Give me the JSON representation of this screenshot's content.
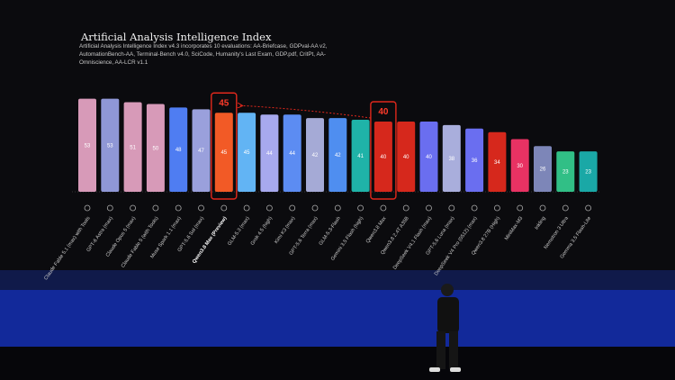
{
  "chart_data": {
    "type": "bar",
    "title": "Artificial Analysis Intelligence Index",
    "subtitle": "Artificial Analysis Intelligence Index v4.3 incorporates 10 evaluations: AA-Briefcase, GDPval-AA v2, AutomationBench-AA, Terminal-Bench v4.0, SciCode, Humanity's Last Exam, GDP.pdf, CritPt, AA-Omniscience, AA-LCR v1.1",
    "categories": [
      "Claude Fable 5.1 (max) with Tools",
      "GPT-6 Astra (max)",
      "Claude Opus 5 (max)",
      "Claude Fable 5 (with Tools)",
      "Muse Spark 1.1 (max)",
      "GPT-5.6 Sol (max)",
      "Qwen3.8 Max (Preview)",
      "GLM-5.3 (max)",
      "Grok 4.5 (high)",
      "Kimi K3 (max)",
      "GPT-5.6 Terra (max)",
      "GLM-5.3-Flash",
      "Gemini 3.5 Flash (high)",
      "Qwen3.8 Max",
      "Qwen3.8 2.4T A35B",
      "DeepSeek V4.1 Flash (max)",
      "GPT-5.6 Luna (max)",
      "DeepSeek V4 Pro (0512) (max)",
      "Qwen3.8 27B (High)",
      "MiniMax-M3",
      "Inkling",
      "Nemotron 3 Ultra",
      "Gemma 3.5 Flash-Lite"
    ],
    "values": [
      53,
      53,
      51,
      50,
      48,
      47,
      45,
      45,
      44,
      44,
      42,
      42,
      41,
      40,
      40,
      40,
      38,
      36,
      34,
      30,
      26,
      23,
      23
    ],
    "colors": [
      "#d79ab8",
      "#8f97d6",
      "#d79ab8",
      "#d79ab8",
      "#4f7df2",
      "#9aa0dc",
      "#f25a26",
      "#62b4f4",
      "#a7a9ee",
      "#5c8cf2",
      "#a5aad6",
      "#4f8ef0",
      "#1fb3a8",
      "#d6281c",
      "#d6281c",
      "#6a6ef0",
      "#a9aedc",
      "#6a6ef0",
      "#d6281c",
      "#e83263",
      "#7d86b8",
      "#31bf86",
      "#1aa8a6"
    ],
    "highlight_indices": [
      6,
      13
    ]
  }
}
